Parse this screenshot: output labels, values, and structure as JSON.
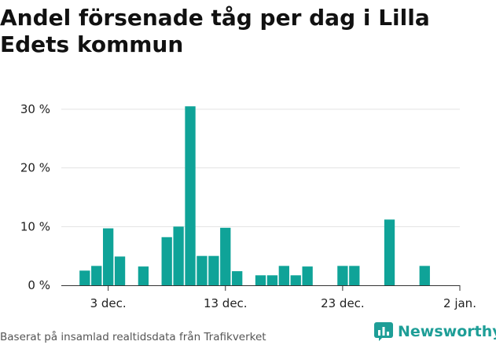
{
  "title": "Andel försenade tåg per dag i Lilla Edets kommun",
  "source": "Baserat på insamlad realtidsdata från Trafikverket",
  "brand": {
    "name": "Newsworthy",
    "logo_icon": "newsworthy-logo-icon",
    "color": "#1e9e97"
  },
  "chart_data": {
    "type": "bar",
    "title": "Andel försenade tåg per dag i Lilla Edets kommun",
    "xlabel": "",
    "ylabel": "",
    "bar_color": "#0fa398",
    "grid": true,
    "ylim": [
      0,
      30
    ],
    "y_ticks": [
      0,
      10,
      20,
      30
    ],
    "y_tick_labels": [
      "0 %",
      "10 %",
      "20 %",
      "30 %"
    ],
    "x_domain": [
      "2023-11-29",
      "2024-01-02"
    ],
    "x_ticks": [
      "2023-12-03",
      "2023-12-13",
      "2023-12-23",
      "2024-01-02"
    ],
    "x_tick_labels": [
      "3 dec.",
      "13 dec.",
      "23 dec.",
      "2 jan."
    ],
    "x": [
      "2023-12-01",
      "2023-12-02",
      "2023-12-03",
      "2023-12-04",
      "2023-12-06",
      "2023-12-08",
      "2023-12-09",
      "2023-12-10",
      "2023-12-11",
      "2023-12-12",
      "2023-12-13",
      "2023-12-14",
      "2023-12-16",
      "2023-12-17",
      "2023-12-18",
      "2023-12-19",
      "2023-12-20",
      "2023-12-23",
      "2023-12-24",
      "2023-12-27",
      "2023-12-30"
    ],
    "values": [
      2.5,
      3.3,
      9.7,
      4.9,
      3.2,
      8.2,
      10.0,
      30.5,
      5.0,
      5.0,
      9.8,
      2.4,
      1.7,
      1.7,
      3.3,
      1.7,
      3.2,
      3.3,
      3.3,
      11.2,
      3.3
    ]
  }
}
